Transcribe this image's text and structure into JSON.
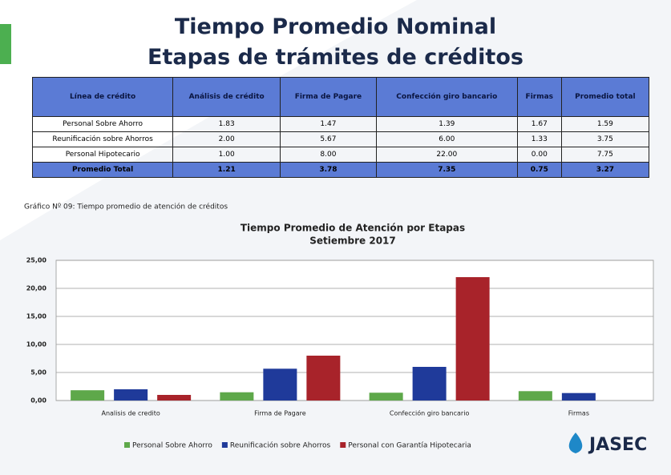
{
  "slide": {
    "title_line1": "Tiempo Promedio Nominal",
    "title_line2": "Etapas de trámites de créditos",
    "caption": "Gráfico Nº 09: Tiempo promedio de atención de créditos",
    "logo": "JASEC"
  },
  "table": {
    "header": [
      "Línea de crédito",
      "Análisis de crédito",
      "Firma de Pagare",
      "Confección giro bancario",
      "Firmas",
      "Promedio total"
    ],
    "rows": [
      [
        "Personal Sobre Ahorro",
        "1.83",
        "1.47",
        "1.39",
        "1.67",
        "1.59"
      ],
      [
        "Reunificación sobre Ahorros",
        "2.00",
        "5.67",
        "6.00",
        "1.33",
        "3.75"
      ],
      [
        "Personal Hipotecario",
        "1.00",
        "8.00",
        "22.00",
        "0.00",
        "7.75"
      ],
      [
        "Promedio Total",
        "1.21",
        "3.78",
        "7.35",
        "0.75",
        "3.27"
      ]
    ]
  },
  "chart_data": {
    "type": "bar",
    "title": "Tiempo Promedio de Atención por Etapas",
    "subtitle": "Setiembre 2017",
    "categories": [
      "Analisis de credito",
      "Firma de Pagare",
      "Confección giro bancario",
      "Firmas"
    ],
    "series": [
      {
        "name": "Personal Sobre Ahorro",
        "color": "#5ea84a",
        "values": [
          1.83,
          1.47,
          1.39,
          1.67
        ]
      },
      {
        "name": "Reunificación sobre Ahorros",
        "color": "#1f3a9a",
        "values": [
          2.0,
          5.67,
          6.0,
          1.33
        ]
      },
      {
        "name": "Personal con Garantía Hipotecaria",
        "color": "#a8232a",
        "values": [
          1.0,
          8.0,
          22.0,
          0.0
        ]
      }
    ],
    "ylim": [
      0,
      25
    ],
    "yticks": [
      {
        "value": 0,
        "label": "0,00"
      },
      {
        "value": 5,
        "label": "5,00"
      },
      {
        "value": 10,
        "label": "10,00"
      },
      {
        "value": 15,
        "label": "15,00"
      },
      {
        "value": 20,
        "label": "20,00"
      },
      {
        "value": 25,
        "label": "25,00"
      }
    ],
    "grid": true
  }
}
